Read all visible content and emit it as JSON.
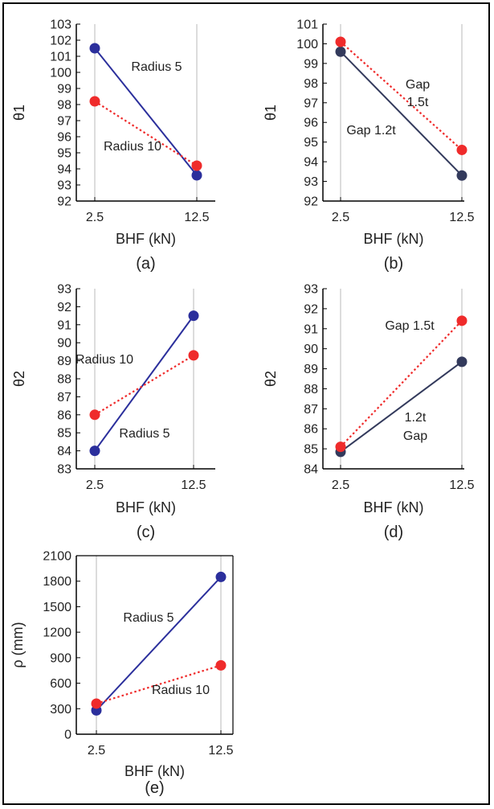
{
  "chart_data": [
    {
      "type": "line",
      "panel_label": "(a)",
      "xlabel": "BHF (kN)",
      "ylabel": "θ1",
      "categories": [
        "2.5",
        "12.5"
      ],
      "ylim": [
        92,
        103
      ],
      "yticks": [
        "92",
        "93",
        "94",
        "95",
        "96",
        "97",
        "98",
        "99",
        "100",
        "101",
        "102",
        "103"
      ],
      "grid": "vertical",
      "series": [
        {
          "name": "Radius 5",
          "values": [
            101.5,
            93.6
          ],
          "color": "#2b2f9c",
          "style": "solid"
        },
        {
          "name": "Radius 10",
          "values": [
            98.2,
            94.2
          ],
          "color": "#ef2b2b",
          "style": "dotted"
        }
      ],
      "annotations": [
        "Radius 5",
        "Radius 10"
      ]
    },
    {
      "type": "line",
      "panel_label": "(b)",
      "xlabel": "BHF (kN)",
      "ylabel": "θ1",
      "categories": [
        "2.5",
        "12.5"
      ],
      "ylim": [
        92,
        101
      ],
      "yticks": [
        "92",
        "93",
        "94",
        "95",
        "96",
        "97",
        "98",
        "99",
        "100",
        "101"
      ],
      "grid": "vertical",
      "series": [
        {
          "name": "Gap 1.2t",
          "values": [
            99.6,
            93.3
          ],
          "color": "#333a5c",
          "style": "solid"
        },
        {
          "name": "Gap 1.5t",
          "values": [
            100.1,
            94.6
          ],
          "color": "#ef2b2b",
          "style": "dotted"
        }
      ],
      "annotations": [
        "Gap",
        "1.5t",
        "Gap 1.2t"
      ]
    },
    {
      "type": "line",
      "panel_label": "(c)",
      "xlabel": "BHF (kN)",
      "ylabel": "θ2",
      "categories": [
        "2.5",
        "12.5"
      ],
      "ylim": [
        83,
        93
      ],
      "yticks": [
        "83",
        "84",
        "85",
        "86",
        "87",
        "88",
        "89",
        "90",
        "91",
        "92",
        "93"
      ],
      "grid": "vertical",
      "series": [
        {
          "name": "Radius 5",
          "values": [
            84.0,
            91.5
          ],
          "color": "#2b2f9c",
          "style": "solid"
        },
        {
          "name": "Radius 10",
          "values": [
            86.0,
            89.3
          ],
          "color": "#ef2b2b",
          "style": "dotted"
        }
      ],
      "annotations": [
        "Radius 10",
        "Radius 5"
      ]
    },
    {
      "type": "line",
      "panel_label": "(d)",
      "xlabel": "BHF (kN)",
      "ylabel": "θ2",
      "categories": [
        "2.5",
        "12.5"
      ],
      "ylim": [
        84,
        93
      ],
      "yticks": [
        "84",
        "85",
        "86",
        "87",
        "88",
        "89",
        "90",
        "91",
        "92",
        "93"
      ],
      "grid": "vertical",
      "series": [
        {
          "name": "1.2t Gap",
          "values": [
            84.85,
            89.35
          ],
          "color": "#333a5c",
          "style": "solid"
        },
        {
          "name": "Gap 1.5t",
          "values": [
            85.1,
            91.4
          ],
          "color": "#ef2b2b",
          "style": "dotted"
        }
      ],
      "annotations": [
        "Gap 1.5t",
        "1.2t",
        "Gap"
      ]
    },
    {
      "type": "line",
      "panel_label": "(e)",
      "xlabel": "BHF (kN)",
      "ylabel": "ρ (mm)",
      "categories": [
        "2.5",
        "12.5"
      ],
      "ylim": [
        0,
        2100
      ],
      "yticks": [
        "0",
        "300",
        "600",
        "900",
        "1200",
        "1500",
        "1800",
        "2100"
      ],
      "grid": "vertical",
      "series": [
        {
          "name": "Radius 5",
          "values": [
            280,
            1850
          ],
          "color": "#2b2f9c",
          "style": "solid"
        },
        {
          "name": "Radius 10",
          "values": [
            360,
            810
          ],
          "color": "#ef2b2b",
          "style": "dotted"
        }
      ],
      "annotations": [
        "Radius 5",
        "Radius 10"
      ]
    }
  ]
}
